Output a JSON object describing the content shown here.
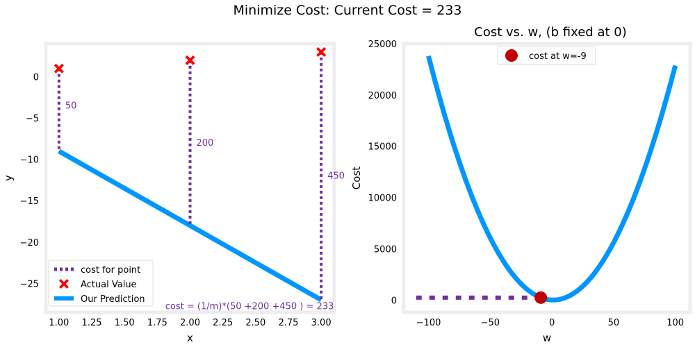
{
  "suptitle": "Minimize Cost: Current Cost = 233",
  "chart_data": [
    {
      "type": "line",
      "title": "",
      "xlabel": "x",
      "ylabel": "y",
      "xlim": [
        0.9,
        3.1
      ],
      "ylim": [
        -28.5,
        4
      ],
      "xticks": [
        1.0,
        1.25,
        1.5,
        1.75,
        2.0,
        2.25,
        2.5,
        2.75,
        3.0
      ],
      "xtick_labels": [
        "1.00",
        "1.25",
        "1.50",
        "1.75",
        "2.00",
        "2.25",
        "2.50",
        "2.75",
        "3.00"
      ],
      "yticks": [
        0,
        -5,
        -10,
        -15,
        -20,
        -25
      ],
      "ytick_labels": [
        "0",
        "−5",
        "−10",
        "−15",
        "−20",
        "−25"
      ],
      "series": [
        {
          "name": "Our Prediction",
          "x": [
            1,
            3
          ],
          "y": [
            -9,
            -27
          ],
          "color": "#0096ff"
        },
        {
          "name": "Actual Value",
          "x": [
            1,
            2,
            3
          ],
          "y": [
            1,
            2,
            3
          ],
          "color": "#ff0000",
          "marker": "X"
        },
        {
          "name": "cost for point",
          "color": "#7030a0",
          "style": "dotted",
          "segments": [
            {
              "x": 1,
              "y_from": 1,
              "y_to": -9,
              "label": "50",
              "label_y": -3.5
            },
            {
              "x": 2,
              "y_from": 2,
              "y_to": -18,
              "label": "200",
              "label_y": -8
            },
            {
              "x": 3,
              "y_from": 3,
              "y_to": -27,
              "label": "450",
              "label_y": -12
            }
          ]
        }
      ],
      "legend": {
        "position": "lower-left",
        "entries": [
          "cost for point",
          "Actual Value",
          "Our Prediction"
        ]
      },
      "annotation": {
        "text": "cost = (1/m)*(50 +200 +450 ) = 233",
        "x": 2.15,
        "y": -27.7
      },
      "grid": false
    },
    {
      "type": "line",
      "title": "Cost vs. w, (b fixed at 0)",
      "xlabel": "w",
      "ylabel": "Cost",
      "xlim": [
        -120,
        112
      ],
      "ylim": [
        -1200,
        25000
      ],
      "xticks": [
        -100,
        -50,
        0,
        50,
        100
      ],
      "xtick_labels": [
        "−100",
        "−50",
        "0",
        "50",
        "100"
      ],
      "yticks": [
        0,
        5000,
        10000,
        15000,
        20000,
        25000
      ],
      "ytick_labels": [
        "0",
        "5000",
        "10000",
        "15000",
        "20000",
        "25000"
      ],
      "series": [
        {
          "name": "cost curve",
          "function": "1/6*((w-1)^2+(2w-2)^2+(3w-3)^2)",
          "w_range": [
            -100,
            100
          ],
          "color": "#0096ff"
        },
        {
          "name": "cost at w=-9",
          "x": [
            -9
          ],
          "y": [
            233
          ],
          "color": "#c00000",
          "marker": "o"
        },
        {
          "name": "w marker",
          "color": "#7030a0",
          "style": "dotted",
          "segments": [
            {
              "orientation": "horizontal",
              "y": 233,
              "x_from": -110,
              "x_to": -9
            },
            {
              "orientation": "vertical",
              "x": -9,
              "y_from": 233,
              "y_to": -1000
            }
          ]
        }
      ],
      "legend": {
        "position": "top-center",
        "entries": [
          "cost at w=-9"
        ]
      },
      "grid": false
    }
  ]
}
